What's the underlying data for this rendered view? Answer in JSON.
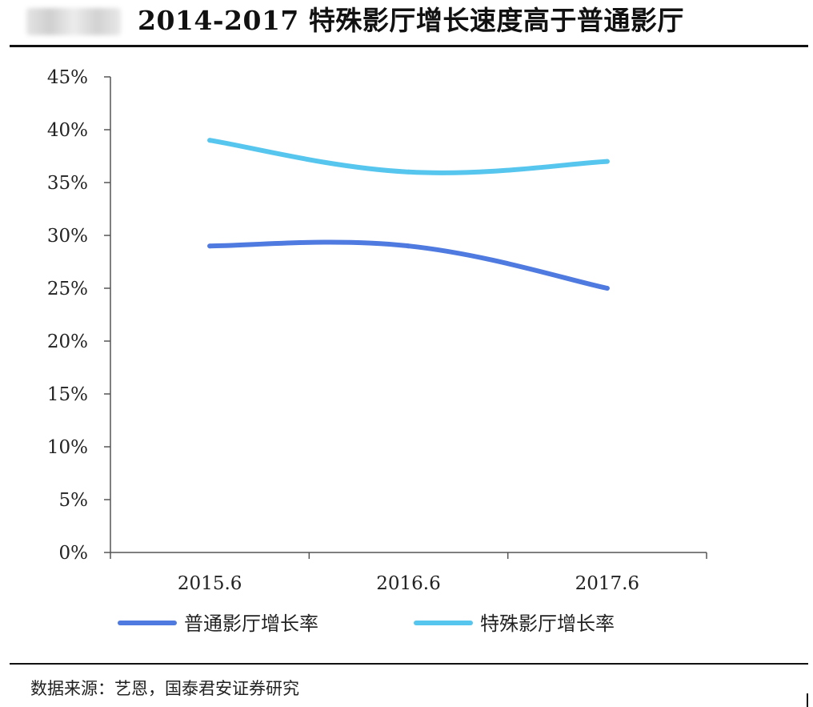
{
  "header": {
    "title": "2014-2017 特殊影厅增长速度高于普通影厅"
  },
  "footer": {
    "source": "数据来源：艺恩，国泰君安证券研究"
  },
  "chart_data": {
    "type": "line",
    "title": "2014-2017 特殊影厅增长速度高于普通影厅",
    "xlabel": "",
    "ylabel": "",
    "categories": [
      "2015.6",
      "2016.6",
      "2017.6"
    ],
    "y_ticks": [
      "0%",
      "5%",
      "10%",
      "15%",
      "20%",
      "25%",
      "30%",
      "35%",
      "40%",
      "45%"
    ],
    "ylim": [
      0,
      45
    ],
    "y_unit": "%",
    "grid": false,
    "smooth": true,
    "legend_position": "bottom",
    "series": [
      {
        "name": "普通影厅增长率",
        "values": [
          29,
          29,
          25
        ],
        "color": "#4f7ae0"
      },
      {
        "name": "特殊影厅增长率",
        "values": [
          39,
          36,
          37
        ],
        "color": "#56c6ee"
      }
    ]
  }
}
